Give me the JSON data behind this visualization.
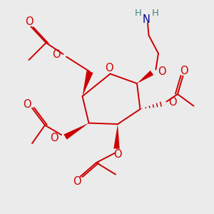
{
  "bg_color": "#ebebeb",
  "bond_color": "#cc0000",
  "bond_lw": 1.4,
  "atom_colors": {
    "O": "#cc0000",
    "N": "#00008b",
    "H": "#4a8080",
    "C_gray": "#808080"
  },
  "font_size": 9.5
}
